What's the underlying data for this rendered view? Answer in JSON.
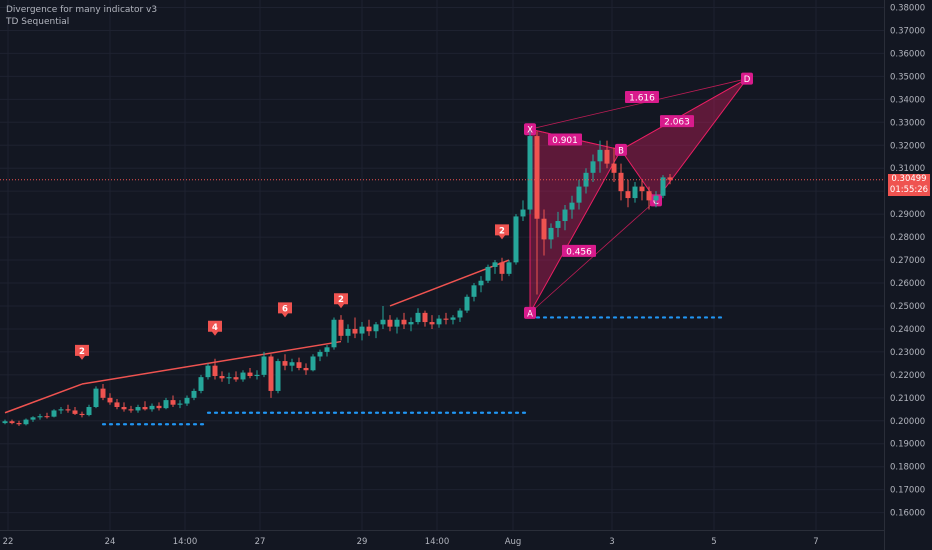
{
  "indicators": [
    "Divergence for many indicator v3",
    "TD Sequential"
  ],
  "price_tag": "0.30499",
  "countdown_tag": "01:55:26",
  "colors": {
    "background": "#131722",
    "grid": "#1e2230",
    "up": "#26a69a",
    "down": "#ef5350",
    "pattern": "#e91e63",
    "pattern_label": "#d81b8c",
    "td_setup": "#26a69a",
    "td_red": "#ef5350",
    "support": "#2196f3",
    "axis_text": "#b2b5be"
  },
  "chart_data": {
    "type": "candlestick",
    "y_ticks": [
      "0.38000",
      "0.37000",
      "0.36000",
      "0.35000",
      "0.34000",
      "0.33000",
      "0.32000",
      "0.31000",
      "0.30000",
      "0.29000",
      "0.28000",
      "0.27000",
      "0.26000",
      "0.25000",
      "0.24000",
      "0.23000",
      "0.22000",
      "0.21000",
      "0.20000",
      "0.19000",
      "0.18000",
      "0.17000",
      "0.16000"
    ],
    "ylim": [
      0.153,
      0.384
    ],
    "x_ticks": [
      "22",
      "24",
      "14:00",
      "27",
      "29",
      "14:00",
      "Aug",
      "3",
      "5",
      "7"
    ],
    "current_price": 0.30499,
    "candles": [
      [
        0.199,
        0.2005,
        0.1985,
        0.1998
      ],
      [
        0.1998,
        0.2005,
        0.1985,
        0.199
      ],
      [
        0.199,
        0.2,
        0.1978,
        0.1985
      ],
      [
        0.1985,
        0.201,
        0.198,
        0.2005
      ],
      [
        0.2005,
        0.202,
        0.1995,
        0.2015
      ],
      [
        0.2015,
        0.203,
        0.2005,
        0.202
      ],
      [
        0.202,
        0.2035,
        0.201,
        0.2018
      ],
      [
        0.2018,
        0.205,
        0.2015,
        0.2045
      ],
      [
        0.2045,
        0.206,
        0.203,
        0.205
      ],
      [
        0.205,
        0.207,
        0.2035,
        0.2045
      ],
      [
        0.2045,
        0.206,
        0.2025,
        0.203
      ],
      [
        0.203,
        0.204,
        0.2015,
        0.2025
      ],
      [
        0.2025,
        0.207,
        0.202,
        0.206
      ],
      [
        0.206,
        0.215,
        0.2055,
        0.214
      ],
      [
        0.214,
        0.216,
        0.209,
        0.21
      ],
      [
        0.21,
        0.212,
        0.207,
        0.208
      ],
      [
        0.208,
        0.2095,
        0.205,
        0.206
      ],
      [
        0.206,
        0.208,
        0.204,
        0.205
      ],
      [
        0.205,
        0.2065,
        0.2035,
        0.2045
      ],
      [
        0.2045,
        0.207,
        0.2035,
        0.206
      ],
      [
        0.206,
        0.2085,
        0.2045,
        0.205
      ],
      [
        0.205,
        0.2075,
        0.204,
        0.2065
      ],
      [
        0.2065,
        0.208,
        0.2045,
        0.2055
      ],
      [
        0.2055,
        0.21,
        0.205,
        0.209
      ],
      [
        0.209,
        0.211,
        0.206,
        0.207
      ],
      [
        0.207,
        0.209,
        0.2055,
        0.2075
      ],
      [
        0.2075,
        0.211,
        0.2065,
        0.21
      ],
      [
        0.21,
        0.214,
        0.209,
        0.213
      ],
      [
        0.213,
        0.22,
        0.212,
        0.219
      ],
      [
        0.219,
        0.225,
        0.218,
        0.224
      ],
      [
        0.224,
        0.227,
        0.218,
        0.2195
      ],
      [
        0.2195,
        0.2215,
        0.217,
        0.2185
      ],
      [
        0.2185,
        0.221,
        0.216,
        0.219
      ],
      [
        0.219,
        0.2215,
        0.217,
        0.218
      ],
      [
        0.218,
        0.222,
        0.217,
        0.221
      ],
      [
        0.221,
        0.223,
        0.2185,
        0.2195
      ],
      [
        0.2195,
        0.222,
        0.218,
        0.22
      ],
      [
        0.22,
        0.23,
        0.219,
        0.228
      ],
      [
        0.228,
        0.229,
        0.21,
        0.213
      ],
      [
        0.213,
        0.227,
        0.212,
        0.226
      ],
      [
        0.226,
        0.229,
        0.222,
        0.224
      ],
      [
        0.224,
        0.227,
        0.2215,
        0.2255
      ],
      [
        0.2255,
        0.2275,
        0.222,
        0.223
      ],
      [
        0.223,
        0.225,
        0.22,
        0.222
      ],
      [
        0.222,
        0.229,
        0.2215,
        0.228
      ],
      [
        0.228,
        0.231,
        0.226,
        0.23
      ],
      [
        0.23,
        0.233,
        0.228,
        0.232
      ],
      [
        0.232,
        0.245,
        0.231,
        0.244
      ],
      [
        0.244,
        0.246,
        0.235,
        0.237
      ],
      [
        0.237,
        0.242,
        0.234,
        0.24
      ],
      [
        0.24,
        0.245,
        0.236,
        0.238
      ],
      [
        0.238,
        0.243,
        0.235,
        0.241
      ],
      [
        0.241,
        0.244,
        0.237,
        0.239
      ],
      [
        0.239,
        0.243,
        0.236,
        0.242
      ],
      [
        0.242,
        0.25,
        0.24,
        0.244
      ],
      [
        0.244,
        0.246,
        0.239,
        0.241
      ],
      [
        0.241,
        0.245,
        0.238,
        0.244
      ],
      [
        0.244,
        0.247,
        0.24,
        0.242
      ],
      [
        0.242,
        0.245,
        0.239,
        0.243
      ],
      [
        0.243,
        0.249,
        0.242,
        0.247
      ],
      [
        0.247,
        0.248,
        0.241,
        0.243
      ],
      [
        0.243,
        0.246,
        0.24,
        0.242
      ],
      [
        0.242,
        0.246,
        0.2405,
        0.2445
      ],
      [
        0.2445,
        0.247,
        0.242,
        0.244
      ],
      [
        0.244,
        0.246,
        0.242,
        0.245
      ],
      [
        0.245,
        0.249,
        0.243,
        0.248
      ],
      [
        0.248,
        0.255,
        0.247,
        0.254
      ],
      [
        0.254,
        0.26,
        0.252,
        0.259
      ],
      [
        0.259,
        0.263,
        0.256,
        0.261
      ],
      [
        0.261,
        0.268,
        0.26,
        0.267
      ],
      [
        0.267,
        0.27,
        0.264,
        0.269
      ],
      [
        0.269,
        0.271,
        0.261,
        0.264
      ],
      [
        0.264,
        0.27,
        0.263,
        0.269
      ],
      [
        0.269,
        0.29,
        0.268,
        0.289
      ],
      [
        0.289,
        0.296,
        0.287,
        0.292
      ],
      [
        0.292,
        0.326,
        0.29,
        0.324
      ],
      [
        0.324,
        0.326,
        0.255,
        0.288
      ],
      [
        0.288,
        0.292,
        0.272,
        0.279
      ],
      [
        0.279,
        0.286,
        0.275,
        0.284
      ],
      [
        0.284,
        0.291,
        0.28,
        0.287
      ],
      [
        0.287,
        0.294,
        0.283,
        0.292
      ],
      [
        0.292,
        0.298,
        0.288,
        0.295
      ],
      [
        0.295,
        0.305,
        0.292,
        0.302
      ],
      [
        0.302,
        0.31,
        0.299,
        0.308
      ],
      [
        0.308,
        0.316,
        0.304,
        0.313
      ],
      [
        0.313,
        0.322,
        0.308,
        0.318
      ],
      [
        0.318,
        0.322,
        0.31,
        0.312
      ],
      [
        0.312,
        0.319,
        0.304,
        0.308
      ],
      [
        0.308,
        0.312,
        0.296,
        0.3
      ],
      [
        0.3,
        0.305,
        0.293,
        0.297
      ],
      [
        0.297,
        0.304,
        0.295,
        0.302
      ],
      [
        0.302,
        0.305,
        0.296,
        0.3
      ],
      [
        0.3,
        0.302,
        0.292,
        0.296
      ],
      [
        0.296,
        0.3,
        0.293,
        0.298
      ],
      [
        0.298,
        0.307,
        0.297,
        0.306
      ],
      [
        0.306,
        0.3075,
        0.303,
        0.305
      ]
    ],
    "harmonic_pattern": {
      "points": [
        {
          "label": "X",
          "x": 75,
          "y": 0.327
        },
        {
          "label": "A",
          "x": 75,
          "y": 0.247
        },
        {
          "label": "B",
          "x": 88,
          "y": 0.318
        },
        {
          "label": "C",
          "x": 93,
          "y": 0.296
        },
        {
          "label": "D",
          "x": 106,
          "y": 0.349
        }
      ],
      "ratios": [
        {
          "text": "0.901",
          "x": 80,
          "y": 0.3225
        },
        {
          "text": "0.456",
          "x": 82,
          "y": 0.274
        },
        {
          "text": "1.616",
          "x": 91,
          "y": 0.341
        },
        {
          "text": "2.063",
          "x": 96,
          "y": 0.3305
        }
      ]
    },
    "td_markers": [
      {
        "text": "2",
        "x": 11,
        "y": 0.23
      },
      {
        "text": "4",
        "x": 30,
        "y": 0.2405
      },
      {
        "text": "6",
        "x": 40,
        "y": 0.2485
      },
      {
        "text": "2",
        "x": 48,
        "y": 0.2525
      },
      {
        "text": "2",
        "x": 71,
        "y": 0.2825
      }
    ],
    "trendlines": [
      {
        "from": [
          0,
          0.2035
        ],
        "to": [
          11,
          0.216
        ]
      },
      {
        "from": [
          11,
          0.216
        ],
        "to": [
          48,
          0.2345
        ]
      },
      {
        "from": [
          55,
          0.25
        ],
        "to": [
          72,
          0.27
        ]
      }
    ],
    "support_lines": [
      {
        "from": [
          14,
          0.1985
        ],
        "to": [
          29,
          0.1985
        ]
      },
      {
        "from": [
          29,
          0.2035
        ],
        "to": [
          75,
          0.2035
        ]
      },
      {
        "from": [
          75,
          0.245
        ],
        "to": [
          103,
          0.245
        ]
      }
    ]
  }
}
